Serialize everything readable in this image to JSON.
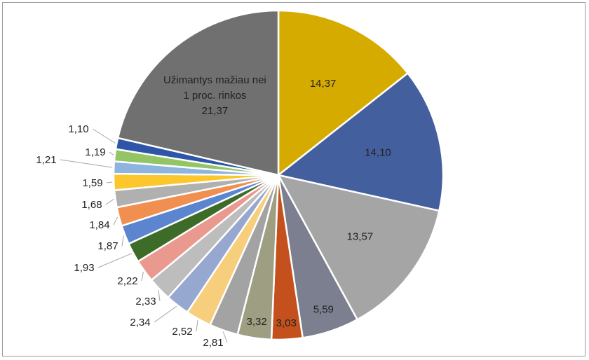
{
  "chart_data": {
    "type": "pie",
    "start_angle_deg": 0,
    "direction": "clockwise",
    "slices": [
      {
        "label": "14,37",
        "value": 14.37,
        "color": "#D6AB00",
        "label_pos": "inside"
      },
      {
        "label": "14,10",
        "value": 14.1,
        "color": "#445F9D",
        "label_pos": "inside"
      },
      {
        "label": "13,57",
        "value": 13.57,
        "color": "#A5A5A5",
        "label_pos": "inside"
      },
      {
        "label": "5,59",
        "value": 5.59,
        "color": "#7C7F90",
        "label_pos": "inside"
      },
      {
        "label": "3,03",
        "value": 3.03,
        "color": "#C4501D",
        "label_pos": "inside"
      },
      {
        "label": "3,32",
        "value": 3.32,
        "color": "#9E9E82",
        "label_pos": "inside"
      },
      {
        "label": "2,81",
        "value": 2.81,
        "color": "#A3A3A3",
        "label_pos": "outside"
      },
      {
        "label": "2,52",
        "value": 2.52,
        "color": "#F6CE7C",
        "label_pos": "outside"
      },
      {
        "label": "2,34",
        "value": 2.34,
        "color": "#97A8D0",
        "label_pos": "outside"
      },
      {
        "label": "2,33",
        "value": 2.33,
        "color": "#BDBDBD",
        "label_pos": "outside"
      },
      {
        "label": "2,22",
        "value": 2.22,
        "color": "#E9998E",
        "label_pos": "outside"
      },
      {
        "label": "1,93",
        "value": 1.93,
        "color": "#3D6B28",
        "label_pos": "outside"
      },
      {
        "label": "1,87",
        "value": 1.87,
        "color": "#5B86CF",
        "label_pos": "outside"
      },
      {
        "label": "1,84",
        "value": 1.84,
        "color": "#F08F50",
        "label_pos": "outside"
      },
      {
        "label": "1,68",
        "value": 1.68,
        "color": "#B0B0B0",
        "label_pos": "outside"
      },
      {
        "label": "1,59",
        "value": 1.59,
        "color": "#FCC62D",
        "label_pos": "outside"
      },
      {
        "label": "1,21",
        "value": 1.21,
        "color": "#8DB5E0",
        "label_pos": "outside"
      },
      {
        "label": "1,19",
        "value": 1.19,
        "color": "#93C565",
        "label_pos": "outside"
      },
      {
        "label": "1,10",
        "value": 1.1,
        "color": "#2F55A8",
        "label_pos": "outside"
      },
      {
        "label": "21,37",
        "label_lines": [
          "Užimantys mažiau nei",
          "1 proc. rinkos",
          "21,37"
        ],
        "value": 21.37,
        "color": "#707070",
        "label_pos": "inside"
      }
    ]
  }
}
